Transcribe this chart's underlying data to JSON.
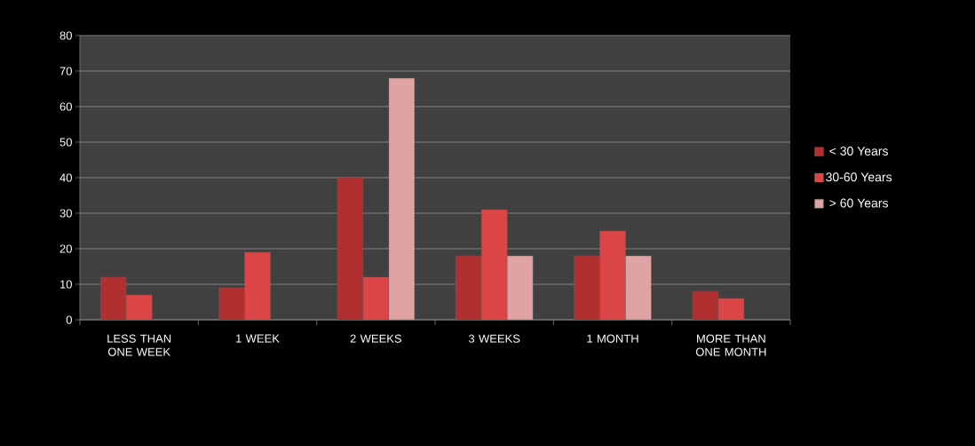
{
  "chart_data": {
    "type": "bar",
    "categories": [
      "LESS THAN ONE WEEK",
      "1 WEEK",
      "2 WEEKS",
      "3 WEEKS",
      "1 MONTH",
      "MORE THAN ONE MONTH"
    ],
    "series": [
      {
        "name": "< 30 Years",
        "color": "#b0302f",
        "values": [
          12,
          9,
          40,
          18,
          18,
          8
        ]
      },
      {
        "name": "30-60 Years",
        "color": "#dc4545",
        "values": [
          7,
          19,
          12,
          31,
          25,
          6
        ]
      },
      {
        "name": "> 60 Years",
        "color": "#dfa3a4",
        "values": [
          null,
          null,
          68,
          18,
          18,
          null
        ]
      }
    ],
    "ylim": [
      0,
      80
    ],
    "yticks": [
      0,
      10,
      20,
      30,
      40,
      50,
      60,
      70,
      80
    ],
    "grid": "y",
    "legend": "right"
  }
}
